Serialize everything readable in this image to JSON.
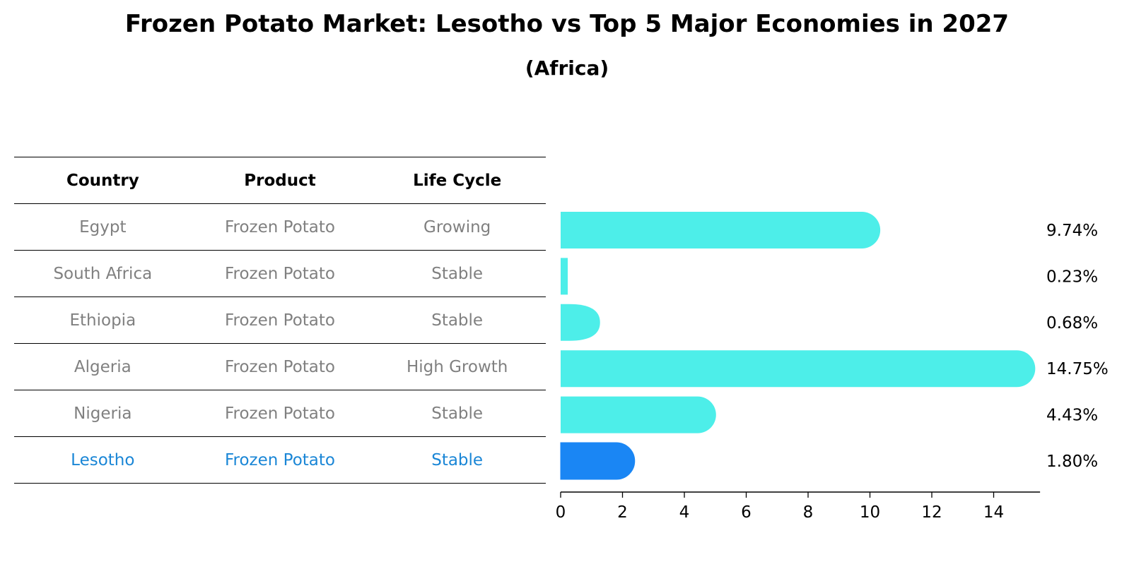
{
  "title": "Frozen Potato Market: Lesotho vs Top 5 Major Economies in 2027",
  "subtitle": "(Africa)",
  "table": {
    "headers": [
      "Country",
      "Product",
      "Life Cycle"
    ],
    "rows": [
      {
        "country": "Egypt",
        "product": "Frozen Potato",
        "life_cycle": "Growing"
      },
      {
        "country": "South Africa",
        "product": "Frozen Potato",
        "life_cycle": "Stable"
      },
      {
        "country": "Ethiopia",
        "product": "Frozen Potato",
        "life_cycle": "Stable"
      },
      {
        "country": "Algeria",
        "product": "Frozen Potato",
        "life_cycle": "High Growth"
      },
      {
        "country": "Nigeria",
        "product": "Frozen Potato",
        "life_cycle": "Stable"
      },
      {
        "country": "Lesotho",
        "product": "Frozen Potato",
        "life_cycle": "Stable"
      }
    ]
  },
  "colors": {
    "bar": "#4deee9",
    "highlight_bar": "#1a86f4",
    "highlight_text": "#1a86d6",
    "row_text": "#808080"
  },
  "chart_data": {
    "type": "bar",
    "orientation": "horizontal",
    "title": "Frozen Potato Market: Lesotho vs Top 5 Major Economies in 2027",
    "subtitle": "(Africa)",
    "categories": [
      "Egypt",
      "South Africa",
      "Ethiopia",
      "Algeria",
      "Nigeria",
      "Lesotho"
    ],
    "values": [
      9.74,
      0.23,
      0.68,
      14.75,
      4.43,
      1.8
    ],
    "value_labels": [
      "9.74%",
      "0.23%",
      "0.68%",
      "14.75%",
      "4.43%",
      "1.80%"
    ],
    "highlight": "Lesotho",
    "xlim": [
      0,
      15.5
    ],
    "xticks": [
      0,
      2,
      4,
      6,
      8,
      10,
      12,
      14
    ],
    "xlabel": "",
    "ylabel": "",
    "grid": false
  }
}
